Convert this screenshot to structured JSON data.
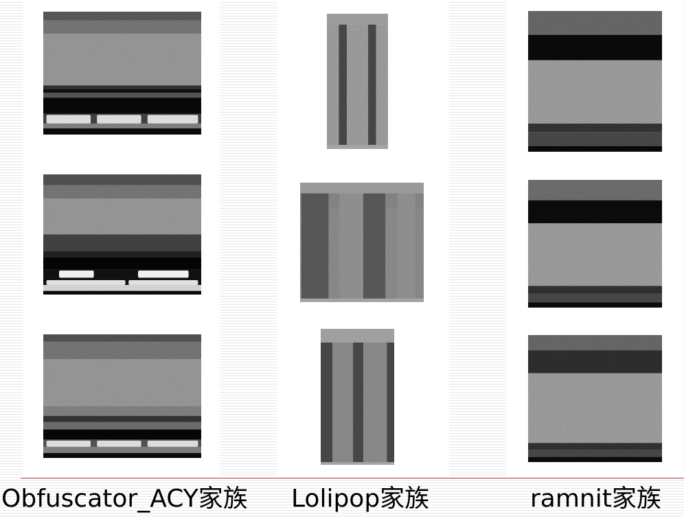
{
  "captions": [
    "Obfuscator_ACY家族",
    "Lolipop家族",
    "ramnit家族"
  ],
  "families": [
    {
      "samples": [
        {
          "bands": [
            [
              0,
              0.07,
              "#4b4b4b",
              0.3
            ],
            [
              0.07,
              0.18,
              "#5f5f5f",
              0.45
            ],
            [
              0.18,
              0.6,
              "#767676",
              0.55
            ],
            [
              0.6,
              0.63,
              "#2a2a2a",
              0.3
            ],
            [
              0.63,
              0.66,
              "#101010",
              0
            ],
            [
              0.66,
              0.7,
              "#4a4a4a",
              0.3
            ],
            [
              0.7,
              0.83,
              "#080808",
              0
            ],
            [
              0.83,
              0.91,
              "#3a3a3a",
              0.2
            ],
            [
              0.91,
              0.95,
              "#6a6a6a",
              0.4
            ],
            [
              0.95,
              1.0,
              "#0a0a0a",
              0
            ]
          ],
          "stripes": [],
          "blocks": [
            [
              0.02,
              0.84,
              0.28,
              0.07,
              "#dcdcdc"
            ],
            [
              0.34,
              0.84,
              0.28,
              0.07,
              "#dcdcdc"
            ],
            [
              0.66,
              0.84,
              0.32,
              0.07,
              "#dcdcdc"
            ]
          ]
        },
        {
          "bands": [
            [
              0,
              0.09,
              "#454545",
              0.3
            ],
            [
              0.09,
              0.2,
              "#5f5f5f",
              0.45
            ],
            [
              0.2,
              0.5,
              "#767676",
              0.55
            ],
            [
              0.5,
              0.64,
              "#3c3c3c",
              0.15
            ],
            [
              0.64,
              0.69,
              "#1e1e1e",
              0.2
            ],
            [
              0.69,
              0.79,
              "#050505",
              0
            ],
            [
              0.79,
              0.92,
              "#101010",
              0.1
            ],
            [
              0.92,
              0.97,
              "#cfcfcf",
              0.15
            ],
            [
              0.97,
              1.0,
              "#0a0a0a",
              0
            ]
          ],
          "stripes": [],
          "blocks": [
            [
              0.1,
              0.8,
              0.22,
              0.06,
              "#f0f0f0"
            ],
            [
              0.6,
              0.8,
              0.32,
              0.06,
              "#f0f0f0"
            ],
            [
              0.02,
              0.88,
              0.5,
              0.04,
              "#e0e0e0"
            ],
            [
              0.54,
              0.88,
              0.44,
              0.04,
              "#e0e0e0"
            ]
          ]
        },
        {
          "bands": [
            [
              0,
              0.06,
              "#454545",
              0.3
            ],
            [
              0.06,
              0.2,
              "#5f5f5f",
              0.45
            ],
            [
              0.2,
              0.58,
              "#767676",
              0.55
            ],
            [
              0.58,
              0.66,
              "#6a6a6a",
              0.4
            ],
            [
              0.66,
              0.71,
              "#303030",
              0.1
            ],
            [
              0.71,
              0.77,
              "#5c5c5c",
              0.35
            ],
            [
              0.77,
              0.85,
              "#070707",
              0
            ],
            [
              0.85,
              0.91,
              "#4a4a4a",
              0.2
            ],
            [
              0.91,
              0.96,
              "#6a6a6a",
              0.4
            ],
            [
              0.96,
              1.0,
              "#0a0a0a",
              0
            ]
          ],
          "stripes": [],
          "blocks": [
            [
              0.02,
              0.86,
              0.28,
              0.05,
              "#dcdcdc"
            ],
            [
              0.34,
              0.86,
              0.28,
              0.05,
              "#dcdcdc"
            ],
            [
              0.66,
              0.86,
              0.32,
              0.05,
              "#dcdcdc"
            ]
          ]
        }
      ]
    },
    {
      "samples": [
        {
          "bands": [
            [
              0,
              0.08,
              "#8c8c8c",
              0.3
            ],
            [
              0.08,
              0.97,
              "#7a7a7a",
              0.55
            ],
            [
              0.97,
              1.0,
              "#9a9a9a",
              0.2
            ]
          ],
          "stripes": [
            [
              0.26,
              0.13,
              "#3c3c3c"
            ],
            [
              0.74,
              0.13,
              "#3c3c3c"
            ]
          ],
          "blocks": []
        },
        {
          "bands": [
            [
              0,
              0.09,
              "#8a8a8a",
              0.3
            ],
            [
              0.09,
              0.21,
              "#6e6e6e",
              0.4
            ],
            [
              0.21,
              0.97,
              "#707070",
              0.45
            ],
            [
              0.97,
              1.0,
              "#9a9a9a",
              0.2
            ]
          ],
          "stripes": [
            [
              0.12,
              0.22,
              "#4a4a4a"
            ],
            [
              0.42,
              0.2,
              "#7a7a7a"
            ],
            [
              0.6,
              0.18,
              "#4a4a4a"
            ],
            [
              0.86,
              0.14,
              "#7a7a7a"
            ]
          ],
          "blocks": []
        },
        {
          "bands": [
            [
              0,
              0.1,
              "#8a8a8a",
              0.4
            ],
            [
              0.1,
              0.98,
              "#707070",
              0.45
            ],
            [
              0.98,
              1.0,
              "#9a9a9a",
              0.2
            ]
          ],
          "stripes": [
            [
              0.08,
              0.16,
              "#3c3c3c"
            ],
            [
              0.51,
              0.14,
              "#3c3c3c"
            ],
            [
              0.95,
              0.1,
              "#3c3c3c"
            ]
          ],
          "blocks": []
        }
      ]
    },
    {
      "samples": [
        {
          "bands": [
            [
              0,
              0.17,
              "#555555",
              0.4
            ],
            [
              0.17,
              0.35,
              "#0a0a0a",
              0
            ],
            [
              0.35,
              0.8,
              "#7a7a7a",
              0.55
            ],
            [
              0.8,
              0.86,
              "#2c2c2c",
              0.3
            ],
            [
              0.86,
              0.96,
              "#3a3a3a",
              0.45
            ],
            [
              0.96,
              1.0,
              "#0a0a0a",
              0
            ]
          ],
          "stripes": [],
          "blocks": []
        },
        {
          "bands": [
            [
              0,
              0.16,
              "#5a5a5a",
              0.4
            ],
            [
              0.16,
              0.34,
              "#0a0a0a",
              0.1
            ],
            [
              0.34,
              0.83,
              "#7a7a7a",
              0.55
            ],
            [
              0.83,
              0.89,
              "#2a2a2a",
              0.3
            ],
            [
              0.89,
              0.96,
              "#3a3a3a",
              0.45
            ],
            [
              0.96,
              1.0,
              "#0a0a0a",
              0
            ]
          ],
          "stripes": [],
          "blocks": []
        },
        {
          "bands": [
            [
              0,
              0.12,
              "#555555",
              0.4
            ],
            [
              0.12,
              0.3,
              "#262626",
              0.35
            ],
            [
              0.3,
              0.85,
              "#7a7a7a",
              0.55
            ],
            [
              0.85,
              0.9,
              "#2a2a2a",
              0.3
            ],
            [
              0.9,
              0.96,
              "#3a3a3a",
              0.45
            ],
            [
              0.96,
              1.0,
              "#0a0a0a",
              0
            ]
          ],
          "stripes": [],
          "blocks": []
        }
      ]
    }
  ]
}
